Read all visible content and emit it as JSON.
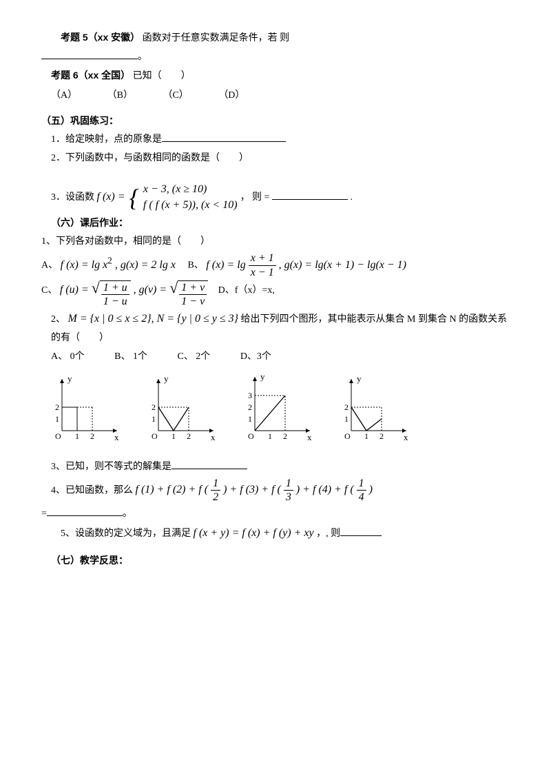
{
  "q5": {
    "label": "考题 5（xx 安徽）",
    "text": "函数对于任意实数满足条件，若  则",
    "tail": "。"
  },
  "q6": {
    "label": "考题 6（xx 全国）",
    "text": "已知（　　）",
    "optA": "（A）",
    "optB": "（B）",
    "optC": "（C）",
    "optD": "（D）"
  },
  "sec5": {
    "title": "（五）巩固练习：",
    "p1": "1．给定映射，点的原象是",
    "p2": "2．下列函数中，与函数相同的函数是（　　）",
    "p3_pre": "3．设函数",
    "p3_mid": "，  则  =",
    "p3_tail": "."
  },
  "piecewise": {
    "fx": "f (x) =",
    "top": "x − 3, (x ≥ 10)",
    "bot": "f ( f (x + 5)), (x < 10)"
  },
  "sec6": {
    "title": "（六）课后作业：",
    "p1": "1、下列各对函数中，相同的是（　　）",
    "optA_pre": "A、",
    "optB_pre": "B、",
    "optC_pre": "C、",
    "optD_pre": "D、f（x）=x,",
    "f_lgx2": "f (x) = lg x",
    "g_2lgx": "g(x) = 2 lg x",
    "f_lgfrac": "f (x) = lg",
    "frac_x1": {
      "num": "x + 1",
      "den": "x − 1"
    },
    "g_diff": ", g(x) = lg(x + 1) − lg(x − 1)",
    "fu_pre": "f (u) =",
    "frac_u": {
      "num": "1 + u",
      "den": "1 − u"
    },
    "gv_pre": ", g(v) =",
    "frac_v": {
      "num": "1 + v",
      "den": "1 − v"
    },
    "p2_pre": "2、",
    "p2_set": "M = {x | 0 ≤ x ≤ 2}, N = {y | 0 ≤ y ≤ 3}",
    "p2_after": "给出下列四个图形，其中能表示从集合 M 到集合 N 的函数关系的有（　　）",
    "p2A": "A、  0个",
    "p2B": "B、  1个",
    "p2C": "C、  2个",
    "p2D": "D、3个",
    "p3": "3、已知，则不等式的解集是",
    "p4_pre": "4、已知函数，那么",
    "p4_expr": "f (1) + f (2) + f (",
    "p4_half": {
      "num": "1",
      "den": "2"
    },
    "p4_mid1": ") + f (3) + f (",
    "p4_third": {
      "num": "1",
      "den": "3"
    },
    "p4_mid2": ") + f (4) + f (",
    "p4_quarter": {
      "num": "1",
      "den": "4"
    },
    "p4_end": ")",
    "p4_eq": "=",
    "p4_tail": "。",
    "p5_pre": "5、设函数的定义域为，且满足",
    "p5_expr": "f (x + y) = f (x) + f (y) + xy",
    "p5_after": "，, 则"
  },
  "sec7": {
    "title": "（七）教学反思："
  },
  "chart": {
    "width": 110,
    "height": 100,
    "axis_color": "#000000",
    "dash": "2,2",
    "xlabel": "x",
    "ylabel": "y",
    "origin": "O",
    "xticks": [
      "1",
      "2"
    ],
    "ytick1": "1",
    "ytick2": "2",
    "ytick3": "3",
    "font": "12px Times New Roman"
  }
}
